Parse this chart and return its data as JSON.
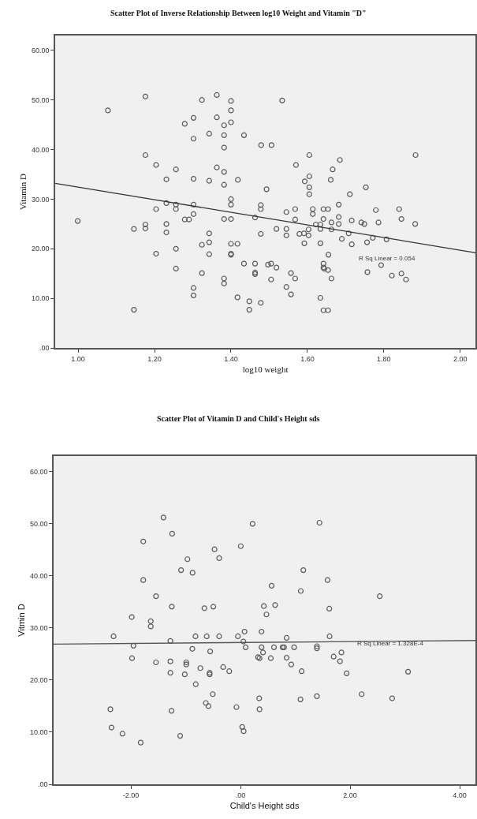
{
  "chart_data": [
    {
      "type": "scatter",
      "title": "Scatter Plot of Inverse Relationship Between log10 Weight and Vitamin \"D\"",
      "xlabel": "log10 weight",
      "ylabel": "Vitamin D",
      "xlim": [
        0.94,
        2.04
      ],
      "ylim": [
        0,
        63
      ],
      "xticks": [
        {
          "value": 1,
          "label": "1.00"
        },
        {
          "value": 1.2,
          "label": "1.20"
        },
        {
          "value": 1.4,
          "label": "1.40"
        },
        {
          "value": 1.6,
          "label": "1.60"
        },
        {
          "value": 1.8,
          "label": "1.80"
        },
        {
          "value": 2,
          "label": "2.00"
        }
      ],
      "yticks": [
        {
          "value": 0,
          "label": ".00"
        },
        {
          "value": 10,
          "label": "10.00"
        },
        {
          "value": 20,
          "label": "20.00"
        },
        {
          "value": 30,
          "label": "30.00"
        },
        {
          "value": 40,
          "label": "40.00"
        },
        {
          "value": 50,
          "label": "50.00"
        },
        {
          "value": 60,
          "label": "60.00"
        }
      ],
      "grid": false,
      "annotations": [
        "R Sq Linear = 0.054"
      ],
      "series": [
        {
          "marker": "circle",
          "color": "#5a5a5a",
          "x": [
            1.078,
            1.176,
            1.324,
            1.363,
            1.4,
            1.4,
            1.302,
            1.363,
            1.279,
            1.382,
            1.4,
            1.343,
            1.382,
            1.434,
            1.302,
            1.382,
            1.176,
            1.204,
            1.256,
            1.363,
            1.382,
            1.231,
            1.302,
            1.343,
            1.382,
            1.418,
            1.534,
            1.479,
            1.506,
            1.605,
            1.57,
            1.685,
            1.666,
            1.883,
            1.605,
            1.593,
            1.661,
            1.493,
            1.605,
            1.753,
            1.605,
            1.711,
            0.999,
            1.146,
            1.176,
            1.176,
            1.204,
            1.231,
            1.256,
            1.256,
            1.302,
            1.302,
            1.279,
            1.29,
            1.231,
            1.231,
            1.204,
            1.256,
            1.256,
            1.146,
            1.324,
            1.343,
            1.343,
            1.343,
            1.324,
            1.302,
            1.302,
            1.382,
            1.382,
            1.4,
            1.4,
            1.382,
            1.4,
            1.4,
            1.417,
            1.4,
            1.4,
            1.434,
            1.417,
            1.448,
            1.448,
            1.478,
            1.478,
            1.463,
            1.478,
            1.545,
            1.568,
            1.568,
            1.519,
            1.545,
            1.545,
            1.579,
            1.591,
            1.603,
            1.603,
            1.592,
            1.614,
            1.614,
            1.642,
            1.654,
            1.682,
            1.642,
            1.622,
            1.634,
            1.634,
            1.663,
            1.663,
            1.682,
            1.682,
            1.716,
            1.708,
            1.69,
            1.634,
            1.716,
            1.741,
            1.749,
            1.779,
            1.786,
            1.771,
            1.756,
            1.807,
            1.84,
            1.846,
            1.882,
            1.655,
            1.463,
            1.463,
            1.463,
            1.497,
            1.505,
            1.519,
            1.505,
            1.557,
            1.568,
            1.545,
            1.557,
            1.642,
            1.642,
            1.644,
            1.654,
            1.663,
            1.757,
            1.793,
            1.821,
            1.846,
            1.858,
            1.634,
            1.642,
            1.654,
            1.478
          ],
          "values": [
            47.9,
            50.7,
            50.0,
            51.0,
            49.8,
            47.9,
            46.4,
            46.5,
            45.2,
            44.9,
            45.5,
            43.2,
            42.9,
            42.9,
            42.2,
            40.4,
            38.9,
            36.9,
            36.0,
            36.4,
            35.5,
            34.0,
            34.1,
            33.7,
            32.9,
            33.9,
            49.9,
            40.9,
            40.9,
            38.9,
            36.9,
            37.9,
            36.0,
            38.9,
            34.6,
            33.6,
            33.9,
            32.0,
            32.4,
            32.4,
            31.0,
            31.0,
            25.6,
            24.0,
            24.9,
            24.1,
            28.0,
            29.2,
            28.9,
            28.0,
            28.9,
            27.0,
            25.9,
            25.9,
            25.0,
            23.3,
            19.0,
            20.0,
            16.0,
            7.7,
            20.8,
            23.1,
            21.3,
            18.9,
            15.1,
            12.1,
            10.6,
            14.0,
            13.0,
            30.0,
            28.9,
            26.0,
            26.0,
            21.0,
            21.0,
            18.8,
            19.0,
            17.0,
            10.2,
            9.4,
            7.7,
            28.8,
            28.0,
            26.3,
            23.0,
            27.4,
            28.0,
            25.9,
            24.0,
            24.0,
            22.7,
            23.0,
            23.1,
            23.9,
            22.7,
            21.1,
            28.0,
            27.0,
            28.0,
            28.0,
            28.9,
            26.0,
            24.9,
            24.9,
            24.0,
            25.3,
            23.9,
            26.4,
            25.0,
            25.7,
            23.1,
            22.0,
            21.1,
            20.9,
            25.3,
            25.0,
            27.8,
            25.3,
            22.2,
            21.3,
            21.9,
            28.0,
            26.0,
            25.0,
            18.8,
            17.0,
            15.2,
            14.9,
            16.8,
            17.0,
            16.2,
            13.8,
            15.1,
            14.0,
            12.3,
            10.8,
            17.0,
            16.2,
            16.0,
            15.7,
            14.0,
            15.3,
            16.7,
            14.6,
            15.0,
            13.8,
            10.1,
            7.6,
            7.6,
            9.1
          ]
        },
        {
          "type": "line",
          "marker": "none",
          "color": "#333333",
          "x": [
            0.94,
            2.04
          ],
          "values": [
            33.2,
            19.2
          ]
        }
      ]
    },
    {
      "type": "scatter",
      "title": "Scatter Plot of Vitamin D and Child's Height sds",
      "xlabel": "Child's Height sds",
      "ylabel": "Vitmin D",
      "xlim": [
        -3.41,
        4.29
      ],
      "ylim": [
        0,
        63
      ],
      "xticks": [
        {
          "value": -2,
          "label": "-2.00"
        },
        {
          "value": 0,
          "label": ".00"
        },
        {
          "value": 2,
          "label": "2.00"
        },
        {
          "value": 4,
          "label": "4.00"
        }
      ],
      "yticks": [
        {
          "value": 0,
          "label": ".00"
        },
        {
          "value": 10,
          "label": "10.00"
        },
        {
          "value": 20,
          "label": "20.00"
        },
        {
          "value": 30,
          "label": "30.00"
        },
        {
          "value": 40,
          "label": "40.00"
        },
        {
          "value": 50,
          "label": "50.00"
        },
        {
          "value": 60,
          "label": "60.00"
        }
      ],
      "grid": false,
      "annotations": [
        "R Sq Linear = 1.328E-4"
      ],
      "series": [
        {
          "marker": "circle",
          "color": "#5a5a5a",
          "x": [
            -1.405,
            -1.247,
            -1.774,
            0.221,
            1.442,
            0.005,
            -0.474,
            -0.389,
            -0.968,
            -1.084,
            -0.874,
            -1.774,
            1.147,
            1.589,
            0.568,
            1.1,
            -1.542,
            2.542,
            -1.253,
            -0.658,
            -0.495,
            0.426,
            0.632,
            0.474,
            1.621,
            -1.984,
            -1.637,
            -1.637,
            -2.316,
            -1.953,
            -1.979,
            -1.542,
            -1.279,
            -1.279,
            -1.279,
            -1.258,
            -2.374,
            -2.353,
            -2.153,
            -1.821,
            -1.1,
            -0.879,
            -0.821,
            -0.989,
            -0.989,
            -1.016,
            -0.816,
            -0.732,
            -0.616,
            -0.553,
            -0.563,
            -0.563,
            -0.389,
            -0.505,
            -0.632,
            -0.584,
            -0.316,
            -0.205,
            -0.074,
            -0.047,
            0.074,
            0.053,
            0.095,
            0.032,
            0.058,
            0.384,
            0.384,
            0.411,
            0.321,
            0.347,
            0.553,
            0.611,
            0.768,
            0.795,
            0.979,
            0.842,
            0.842,
            0.926,
            1.116,
            0.342,
            0.347,
            1.095,
            1.395,
            1.395,
            1.626,
            1.395,
            1.7,
            1.842,
            1.816,
            1.937,
            2.211,
            2.768,
            3.058
          ],
          "values": [
            51.2,
            48.1,
            46.6,
            50.0,
            50.2,
            45.7,
            45.1,
            43.4,
            43.2,
            41.1,
            40.6,
            39.2,
            41.1,
            39.2,
            38.1,
            37.1,
            36.1,
            36.1,
            34.1,
            33.8,
            34.1,
            34.2,
            34.4,
            32.6,
            33.7,
            32.1,
            31.3,
            30.3,
            28.4,
            26.6,
            24.2,
            23.4,
            27.5,
            23.6,
            21.4,
            14.1,
            14.4,
            10.9,
            9.7,
            8.0,
            9.3,
            26.0,
            28.4,
            23.4,
            23.0,
            21.1,
            19.2,
            22.3,
            28.4,
            25.5,
            21.4,
            21.1,
            28.4,
            17.3,
            15.6,
            15.0,
            22.5,
            21.7,
            14.8,
            28.4,
            29.3,
            27.4,
            26.3,
            11.0,
            10.2,
            29.3,
            26.3,
            25.3,
            24.4,
            24.2,
            24.2,
            26.3,
            26.3,
            26.3,
            26.3,
            28.1,
            24.3,
            23.0,
            21.7,
            16.5,
            14.4,
            16.3,
            26.5,
            26.1,
            28.4,
            16.9,
            24.5,
            25.3,
            23.6,
            21.3,
            17.3,
            16.5,
            21.6
          ]
        },
        {
          "type": "line",
          "marker": "none",
          "color": "#555555",
          "x": [
            -3.41,
            4.29
          ],
          "values": [
            26.9,
            27.6
          ]
        }
      ]
    }
  ]
}
